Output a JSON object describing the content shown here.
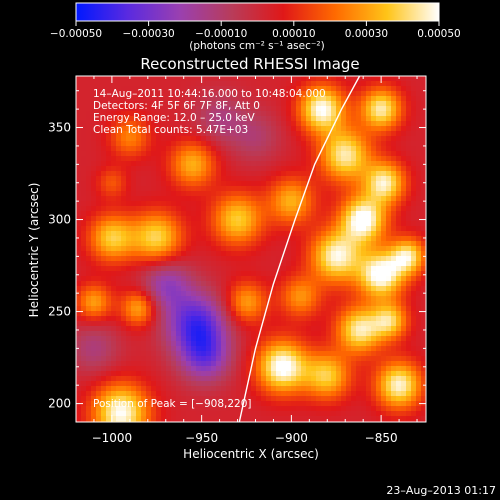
{
  "chart_data": {
    "type": "heatmap",
    "title": "Reconstructed RHESSI Image",
    "xlabel": "Heliocentric X (arcsec)",
    "ylabel": "Heliocentric Y (arcsec)",
    "xlim": [
      -1020,
      -825
    ],
    "ylim": [
      190,
      378
    ],
    "xticks": [
      -1000,
      -950,
      -900,
      -850
    ],
    "xtick_labels": [
      "−1000",
      "−950",
      "−900",
      "−850"
    ],
    "yticks": [
      200,
      250,
      300,
      350
    ],
    "ytick_labels": [
      "200",
      "250",
      "300",
      "350"
    ],
    "grid": false,
    "colorbar": {
      "min": -0.0005,
      "max": 0.0005,
      "tick_values": [
        -0.0005,
        -0.0003,
        -0.0001,
        0.0001,
        0.0003,
        0.0005
      ],
      "tick_labels": [
        "−0.00050",
        "−0.00030",
        "−0.00010",
        "0.00010",
        "0.00030",
        "0.00050"
      ],
      "units": "(photons cm⁻² s⁻¹ asec⁻²)",
      "colors": [
        "#0018ff",
        "#5a2ae0",
        "#9a40b0",
        "#b83c5a",
        "#e01818",
        "#ff6a00",
        "#ffc418",
        "#ffffff"
      ]
    },
    "annotations": {
      "time": "14–Aug–2011 10:44:16.000 to 10:48:04.000",
      "detectors": "Detectors: 4F 5F 6F 7F 8F, Att 0",
      "energy": "Energy Range: 12.0 – 25.0 keV",
      "clean": "Clean     Total counts: 5.47E+03",
      "peak": "Position of Peak = [−908,220]"
    },
    "peak_position": [
      -908,
      220
    ],
    "limb_curve": [
      [
        -929,
        190
      ],
      [
        -920,
        230
      ],
      [
        -910,
        265
      ],
      [
        -898,
        300
      ],
      [
        -887,
        330
      ],
      [
        -872,
        360
      ],
      [
        -862,
        378
      ]
    ],
    "features": [
      {
        "x": -905,
        "y": 220,
        "a": 1.0,
        "r": 10
      },
      {
        "x": -995,
        "y": 195,
        "a": 0.95,
        "r": 11
      },
      {
        "x": -975,
        "y": 290,
        "a": 0.75,
        "r": 10
      },
      {
        "x": -1000,
        "y": 290,
        "a": 0.7,
        "r": 9
      },
      {
        "x": -1010,
        "y": 255,
        "a": 0.55,
        "r": 7
      },
      {
        "x": -985,
        "y": 252,
        "a": 0.6,
        "r": 7
      },
      {
        "x": -955,
        "y": 330,
        "a": 0.6,
        "r": 9
      },
      {
        "x": -990,
        "y": 345,
        "a": 0.45,
        "r": 8
      },
      {
        "x": -1000,
        "y": 320,
        "a": 0.3,
        "r": 6
      },
      {
        "x": -930,
        "y": 300,
        "a": 0.7,
        "r": 10
      },
      {
        "x": -925,
        "y": 255,
        "a": 0.55,
        "r": 8
      },
      {
        "x": -900,
        "y": 310,
        "a": 0.6,
        "r": 9
      },
      {
        "x": -895,
        "y": 258,
        "a": 0.5,
        "r": 8
      },
      {
        "x": -883,
        "y": 360,
        "a": 0.95,
        "r": 9
      },
      {
        "x": -870,
        "y": 335,
        "a": 0.85,
        "r": 10
      },
      {
        "x": -860,
        "y": 300,
        "a": 1.0,
        "r": 9
      },
      {
        "x": -875,
        "y": 280,
        "a": 0.9,
        "r": 10
      },
      {
        "x": -850,
        "y": 270,
        "a": 1.0,
        "r": 9
      },
      {
        "x": -848,
        "y": 320,
        "a": 0.85,
        "r": 8
      },
      {
        "x": -862,
        "y": 240,
        "a": 0.85,
        "r": 9
      },
      {
        "x": -850,
        "y": 360,
        "a": 0.85,
        "r": 8
      },
      {
        "x": -880,
        "y": 215,
        "a": 0.7,
        "r": 9
      },
      {
        "x": -840,
        "y": 210,
        "a": 0.9,
        "r": 9
      },
      {
        "x": -835,
        "y": 280,
        "a": 0.8,
        "r": 7
      },
      {
        "x": -845,
        "y": 245,
        "a": 0.7,
        "r": 7
      },
      {
        "x": -953,
        "y": 243,
        "a": -0.8,
        "r": 12
      },
      {
        "x": -948,
        "y": 225,
        "a": -0.55,
        "r": 10
      },
      {
        "x": -970,
        "y": 265,
        "a": -0.5,
        "r": 10
      },
      {
        "x": -1010,
        "y": 230,
        "a": -0.3,
        "r": 10
      },
      {
        "x": -940,
        "y": 355,
        "a": -0.3,
        "r": 10
      },
      {
        "x": -920,
        "y": 345,
        "a": -0.25,
        "r": 10
      }
    ]
  },
  "footer": {
    "date": "23–Aug–2013 01:17"
  }
}
